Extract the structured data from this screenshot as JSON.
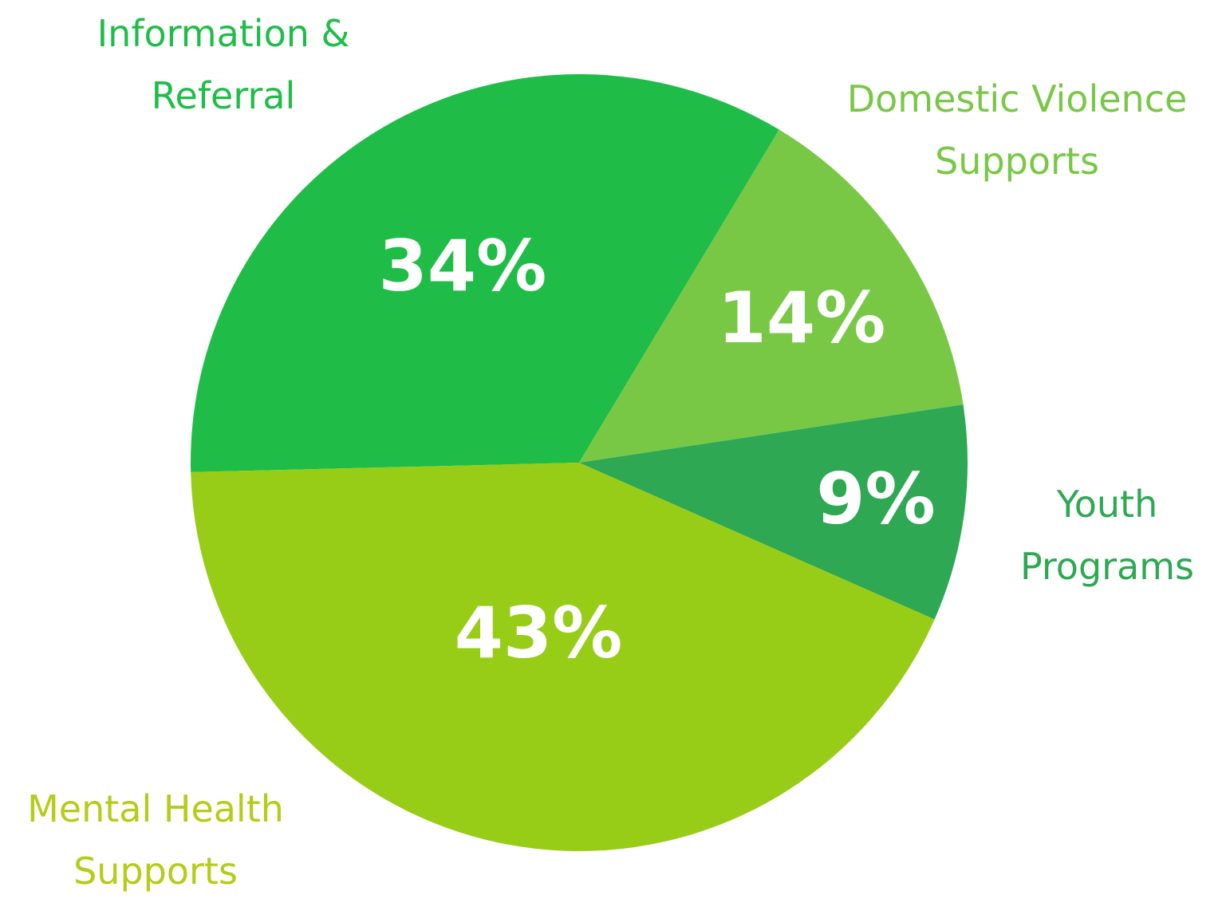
{
  "chart_data": {
    "type": "pie",
    "categories": [
      "Information & Referral",
      "Domestic Violence Supports",
      "Youth Programs",
      "Mental Health Supports"
    ],
    "values": [
      34,
      14,
      9,
      43
    ],
    "value_labels": [
      "34%",
      "14%",
      "9%",
      "43%"
    ],
    "colors": [
      "#1fbd48",
      "#78c846",
      "#2ea853",
      "#97cd17"
    ],
    "label_colors": [
      "#1fbd48",
      "#78c846",
      "#2ea853",
      "#b5cc18"
    ]
  }
}
